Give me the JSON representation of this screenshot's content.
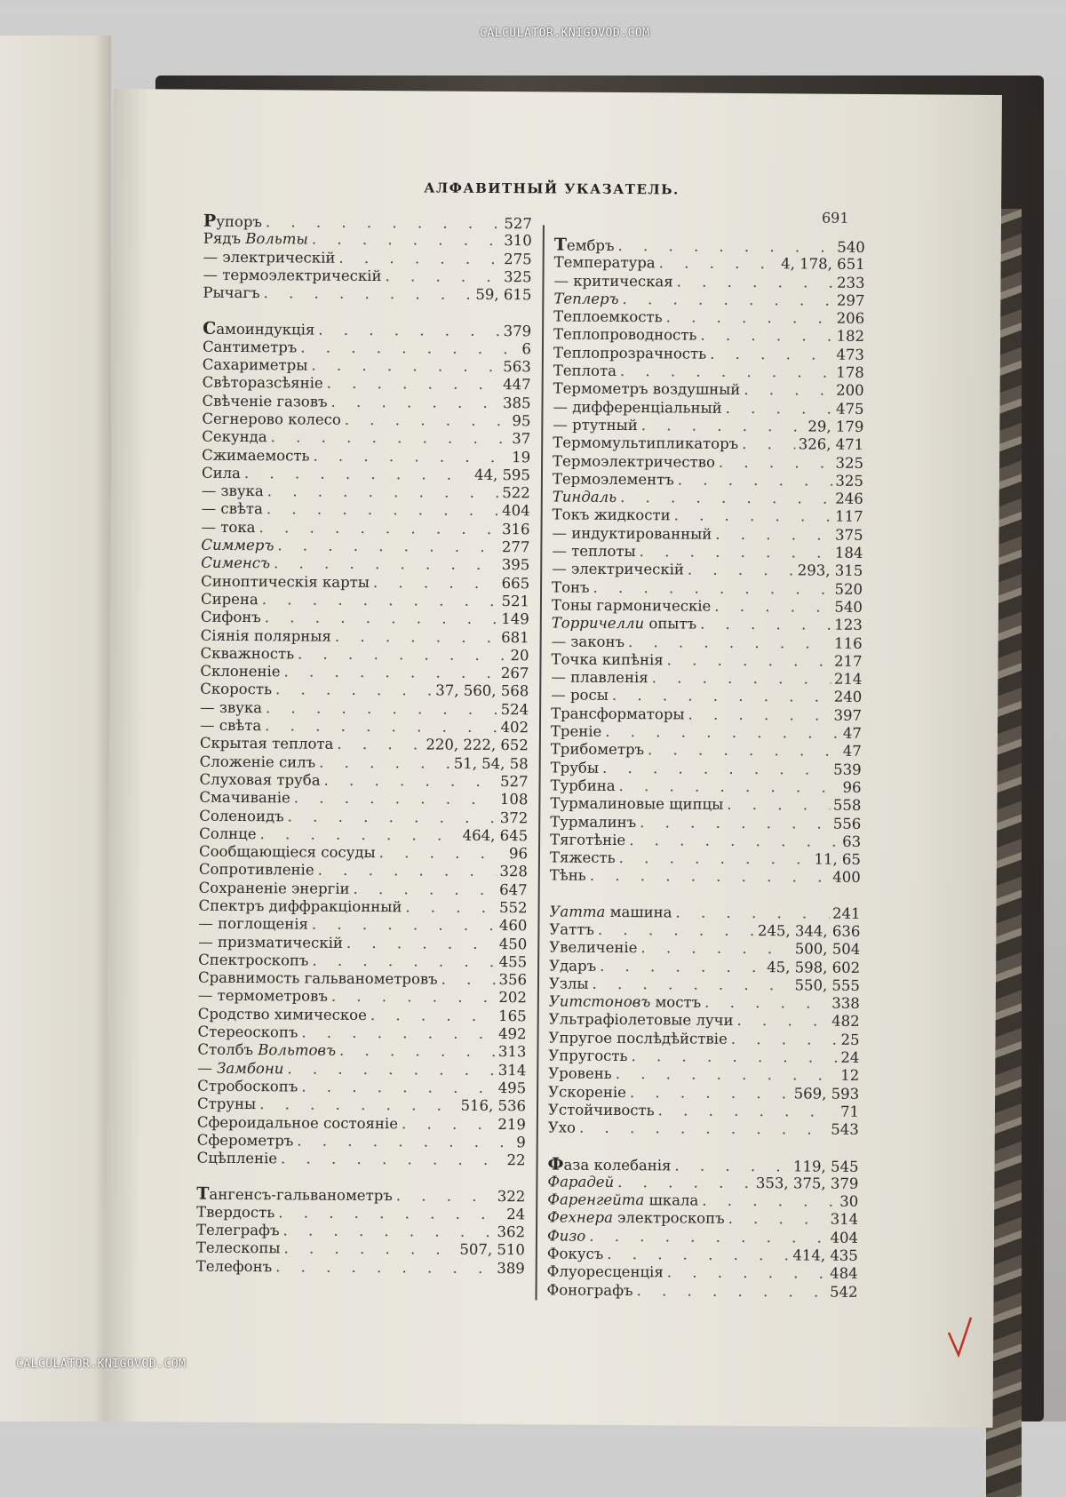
{
  "header": {
    "title": "АЛФАВИТНЫЙ УКАЗАТЕЛЬ.",
    "page_number": "691"
  },
  "watermark": "CALCULATOR.KNIGOVOD.COM",
  "columns": [
    {
      "groups": [
        {
          "entries": [
            {
              "term": "Рупоръ",
              "pages": "527"
            },
            {
              "term": "Рядъ ",
              "it": "Вольты",
              "pages": "310"
            },
            {
              "term": "— электрическій",
              "pages": "275"
            },
            {
              "term": "— термоэлектрическій",
              "pages": "325"
            },
            {
              "term": "Рычагъ",
              "pages": "59, 615"
            }
          ]
        },
        {
          "entries": [
            {
              "term": "Самоиндукція",
              "pages": "379"
            },
            {
              "term": "Сантиметръ",
              "pages": "6"
            },
            {
              "term": "Сахариметры",
              "pages": "563"
            },
            {
              "term": "Свѣторазсѣяніе",
              "pages": "447"
            },
            {
              "term": "Свѣченіе газовъ",
              "pages": "385"
            },
            {
              "term": "Сегнерово колесо",
              "pages": "95"
            },
            {
              "term": "Секунда",
              "pages": "37"
            },
            {
              "term": "Сжимаемость",
              "pages": "19"
            },
            {
              "term": "Сила",
              "pages": "44, 595"
            },
            {
              "term": "— звука",
              "pages": "522"
            },
            {
              "term": "— свѣта",
              "pages": "404"
            },
            {
              "term": "— тока",
              "pages": "316"
            },
            {
              "term": "",
              "it": "Симмеръ",
              "pages": "277"
            },
            {
              "term": "",
              "it": "Сименсъ",
              "pages": "395"
            },
            {
              "term": "Синоптическія карты",
              "pages": "665"
            },
            {
              "term": "Сирена",
              "pages": "521"
            },
            {
              "term": "Сифонъ",
              "pages": "149"
            },
            {
              "term": "Сіянія полярныя",
              "pages": "681"
            },
            {
              "term": "Скважность",
              "pages": "20"
            },
            {
              "term": "Склоненіе",
              "pages": "267"
            },
            {
              "term": "Скорость",
              "pages": "37, 560, 568"
            },
            {
              "term": "— звука",
              "pages": "524"
            },
            {
              "term": "— свѣта",
              "pages": "402"
            },
            {
              "term": "Скрытая теплота",
              "pages": "220, 222, 652"
            },
            {
              "term": "Сложеніе силъ",
              "pages": "51, 54, 58"
            },
            {
              "term": "Слуховая труба",
              "pages": "527"
            },
            {
              "term": "Смачиваніе",
              "pages": "108"
            },
            {
              "term": "Соленоидъ",
              "pages": "372"
            },
            {
              "term": "Солнце",
              "pages": "464, 645"
            },
            {
              "term": "Сообщающіеся сосуды",
              "pages": "96"
            },
            {
              "term": "Сопротивленіе",
              "pages": "328"
            },
            {
              "term": "Сохраненіе энергіи",
              "pages": "647"
            },
            {
              "term": "Спектръ диффракціонный",
              "pages": "552"
            },
            {
              "term": "— поглощенія",
              "pages": "460"
            },
            {
              "term": "— призматическій",
              "pages": "450"
            },
            {
              "term": "Спектроскопъ",
              "pages": "455"
            },
            {
              "term": "Сравнимость гальванометровъ",
              "pages": "356"
            },
            {
              "term": "— термометровъ",
              "pages": "202"
            },
            {
              "term": "Сродство химическое",
              "pages": "165"
            },
            {
              "term": "Стереоскопъ",
              "pages": "492"
            },
            {
              "term": "Столбъ ",
              "it": "Вольтовъ",
              "pages": "313"
            },
            {
              "term": "— ",
              "it": "Замбони",
              "pages": "314"
            },
            {
              "term": "Стробоскопъ",
              "pages": "495"
            },
            {
              "term": "Струны",
              "pages": "516, 536"
            },
            {
              "term": "Сфероидальное состояніе",
              "pages": "219"
            },
            {
              "term": "Сферометръ",
              "pages": "9"
            },
            {
              "term": "Сцѣпленіе",
              "pages": "22"
            }
          ]
        },
        {
          "entries": [
            {
              "term": "Тангенсъ-гальванометръ",
              "pages": "322"
            },
            {
              "term": "Твердость",
              "pages": "24"
            },
            {
              "term": "Телеграфъ",
              "pages": "362"
            },
            {
              "term": "Телескопы",
              "pages": "507, 510"
            },
            {
              "term": "Телефонъ",
              "pages": "389"
            }
          ]
        }
      ]
    },
    {
      "groups": [
        {
          "entries": [
            {
              "term": "Тембръ",
              "pages": "540"
            },
            {
              "term": "Температура",
              "pages": "4, 178, 651"
            },
            {
              "term": "— критическая",
              "pages": "233"
            },
            {
              "term": "",
              "it": "Теплеръ",
              "pages": "297"
            },
            {
              "term": "Теплоемкость",
              "pages": "206"
            },
            {
              "term": "Теплопроводность",
              "pages": "182"
            },
            {
              "term": "Теплопрозрачность",
              "pages": "473"
            },
            {
              "term": "Теплота",
              "pages": "178"
            },
            {
              "term": "Термометръ воздушный",
              "pages": "200"
            },
            {
              "term": "— дифференціальный",
              "pages": "475"
            },
            {
              "term": "— ртутный",
              "pages": "29, 179"
            },
            {
              "term": "Термомультипликаторъ",
              "pages": "326, 471"
            },
            {
              "term": "Термоэлектричество",
              "pages": "325"
            },
            {
              "term": "Термоэлементъ",
              "pages": "325"
            },
            {
              "term": "",
              "it": "Тиндаль",
              "pages": "246"
            },
            {
              "term": "Токъ жидкости",
              "pages": "117"
            },
            {
              "term": "— индуктированный",
              "pages": "375"
            },
            {
              "term": "— теплоты",
              "pages": "184"
            },
            {
              "term": "— электрическій",
              "pages": "293, 315"
            },
            {
              "term": "Тонъ",
              "pages": "520"
            },
            {
              "term": "Тоны гармоническіе",
              "pages": "540"
            },
            {
              "term": "",
              "it": "Торричелли",
              "rest": " опытъ",
              "pages": "123"
            },
            {
              "term": "— законъ",
              "pages": "116"
            },
            {
              "term": "Точка кипѣнія",
              "pages": "217"
            },
            {
              "term": "— плавленія",
              "pages": "214"
            },
            {
              "term": "— росы",
              "pages": "240"
            },
            {
              "term": "Трансформаторы",
              "pages": "397"
            },
            {
              "term": "Треніе",
              "pages": "47"
            },
            {
              "term": "Трибометръ",
              "pages": "47"
            },
            {
              "term": "Трубы",
              "pages": "539"
            },
            {
              "term": "Турбина",
              "pages": "96"
            },
            {
              "term": "Турмалиновые щипцы",
              "pages": "558"
            },
            {
              "term": "Турмалинъ",
              "pages": "556"
            },
            {
              "term": "Тяготѣніе",
              "pages": "63"
            },
            {
              "term": "Тяжесть",
              "pages": "11, 65"
            },
            {
              "term": "Тѣнь",
              "pages": "400"
            }
          ]
        },
        {
          "entries": [
            {
              "term": "",
              "it": "Уатта",
              "rest": " машина",
              "pages": "241"
            },
            {
              "term": "Уаттъ",
              "pages": "245, 344, 636"
            },
            {
              "term": "Увеличеніе",
              "pages": "500, 504"
            },
            {
              "term": "Ударъ",
              "pages": "45, 598, 602"
            },
            {
              "term": "Узлы",
              "pages": "550, 555"
            },
            {
              "term": "",
              "it": "Уитстоновъ",
              "rest": " мостъ",
              "pages": "338"
            },
            {
              "term": "Ультрафіолетовые лучи",
              "pages": "482"
            },
            {
              "term": "Упругое послѣдѣйствіе",
              "pages": "25"
            },
            {
              "term": "Упругость",
              "pages": "24"
            },
            {
              "term": "Уровень",
              "pages": "12"
            },
            {
              "term": "Ускореніе",
              "pages": "569, 593"
            },
            {
              "term": "Устойчивость",
              "pages": "71"
            },
            {
              "term": "Ухо",
              "pages": "543"
            }
          ]
        },
        {
          "entries": [
            {
              "term": "Фаза колебанія",
              "pages": "119, 545"
            },
            {
              "term": "",
              "it": "Фарадей",
              "pages": "353, 375, 379"
            },
            {
              "term": "",
              "it": "Фаренгейта",
              "rest": " шкала",
              "pages": "30"
            },
            {
              "term": "",
              "it": "Фехнера",
              "rest": " электроскопъ",
              "pages": "314"
            },
            {
              "term": "",
              "it": "Физо",
              "pages": "404"
            },
            {
              "term": "Фокусъ",
              "pages": "414, 435"
            },
            {
              "term": "Флуоресценція",
              "pages": "484"
            },
            {
              "term": "Фонографъ",
              "pages": "542"
            }
          ]
        }
      ]
    }
  ]
}
